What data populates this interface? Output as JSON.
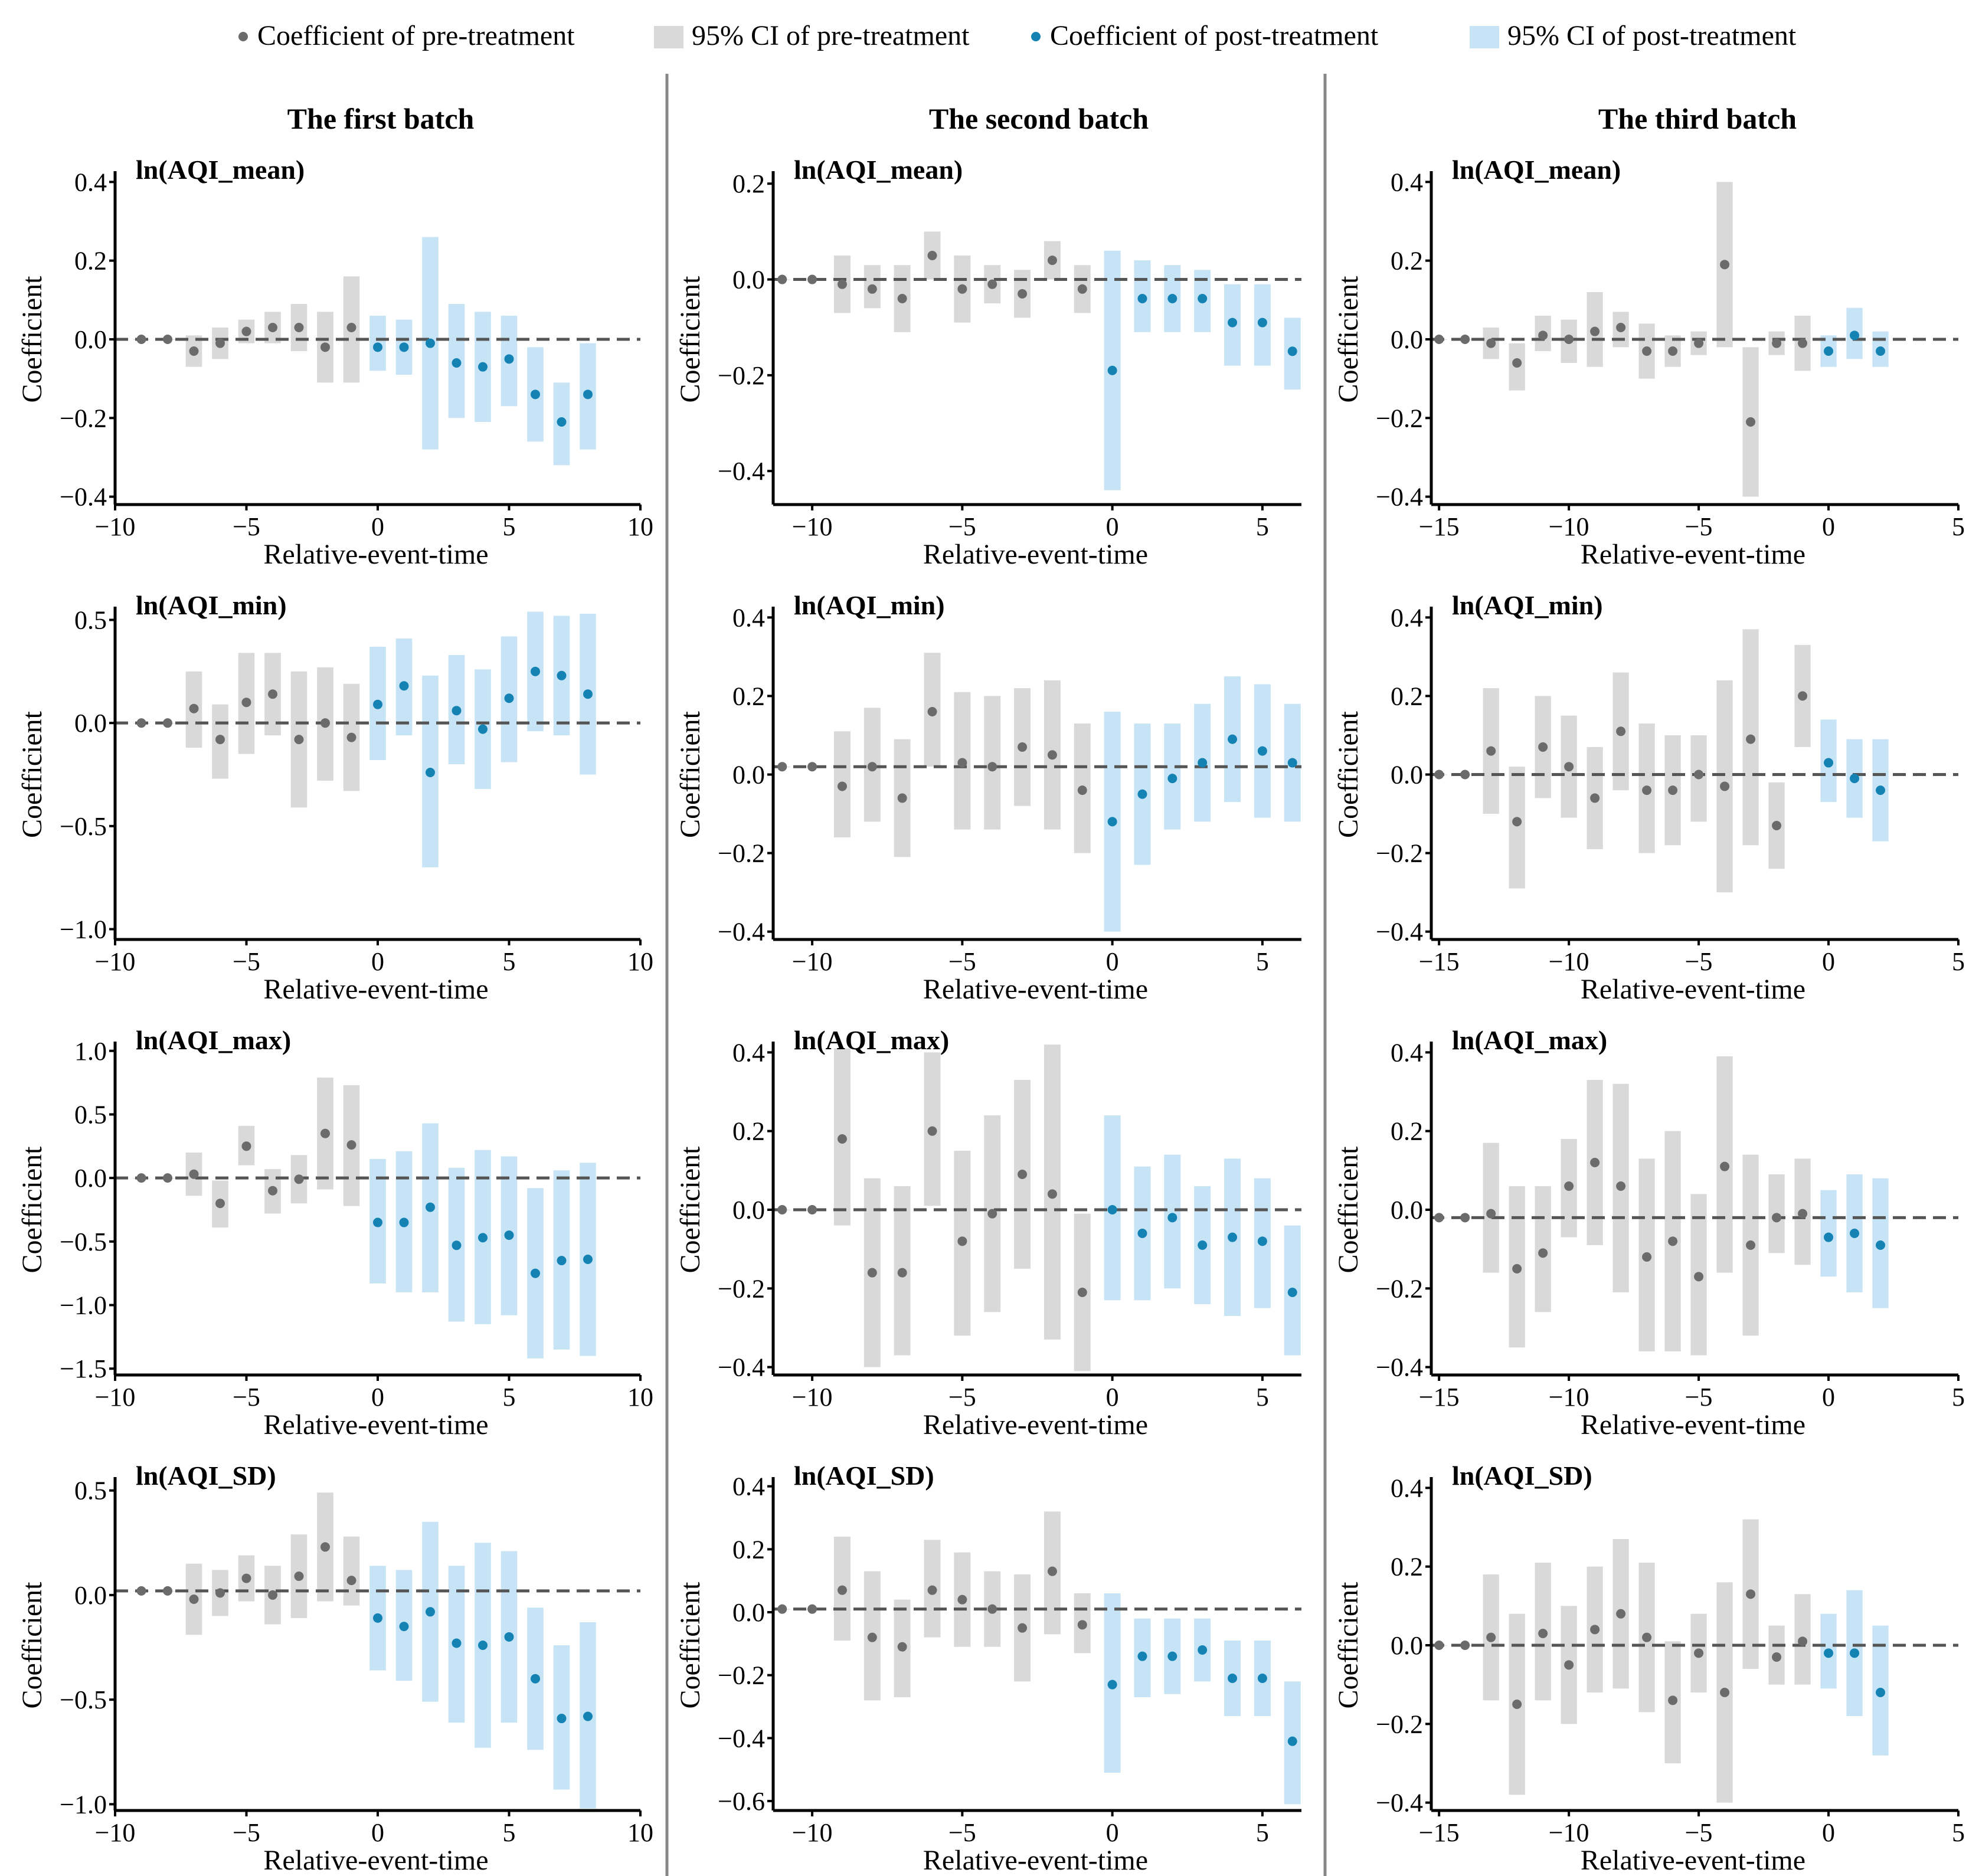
{
  "legend": {
    "pre_coef": "Coefficient of pre-treatment",
    "pre_ci": "95% CI of pre-treatment",
    "post_coef": "Coefficient of post-treatment",
    "post_ci": "95% CI of post-treatment"
  },
  "colors": {
    "pre_point": "#6b6b6b",
    "pre_ci": "#d9d9d9",
    "post_point": "#1483b4",
    "post_ci": "#c6e4f6",
    "zero_line": "#555555"
  },
  "batches": [
    "The first batch",
    "The second batch",
    "The third batch"
  ],
  "panel_titles": [
    "ln(AQI_mean)",
    "ln(AQI_min)",
    "ln(AQI_max)",
    "ln(AQI_SD)"
  ],
  "xlabel": "Relative-event-time",
  "ylabel": "Coefficient",
  "chart_data": [
    {
      "type": "scatter",
      "batch": "The first batch",
      "title": "ln(AQI_mean)",
      "xlim": [
        -10,
        10
      ],
      "xticks": [
        -10,
        -5,
        0,
        5,
        10
      ],
      "ylim": [
        -0.42,
        0.42
      ],
      "yticks": [
        -0.4,
        -0.2,
        0.0,
        0.2,
        0.4
      ],
      "yticklabels": [
        "−0.4",
        "−0.2",
        "0.0",
        "0.2",
        "0.4"
      ],
      "zero": 0,
      "x": [
        -9,
        -8,
        -7,
        -6,
        -5,
        -4,
        -3,
        -2,
        -1,
        0,
        1,
        2,
        3,
        4,
        5,
        6,
        7,
        8
      ],
      "coef": [
        0,
        0,
        -0.03,
        -0.01,
        0.02,
        0.03,
        0.03,
        -0.02,
        0.03,
        -0.02,
        -0.02,
        -0.01,
        -0.06,
        -0.07,
        -0.05,
        -0.14,
        -0.21,
        -0.14
      ],
      "lo": [
        0,
        0,
        -0.07,
        -0.05,
        -0.01,
        -0.01,
        -0.03,
        -0.11,
        -0.11,
        -0.08,
        -0.09,
        -0.28,
        -0.2,
        -0.21,
        -0.17,
        -0.26,
        -0.32,
        -0.28
      ],
      "hi": [
        0,
        0,
        0.01,
        0.03,
        0.05,
        0.07,
        0.09,
        0.07,
        0.16,
        0.06,
        0.05,
        0.26,
        0.09,
        0.07,
        0.06,
        -0.02,
        -0.11,
        -0.01
      ]
    },
    {
      "type": "scatter",
      "batch": "The second batch",
      "title": "ln(AQI_mean)",
      "xlim": [
        -11.3,
        6.3
      ],
      "xticks": [
        -10,
        -5,
        0,
        5
      ],
      "ylim": [
        -0.47,
        0.22
      ],
      "yticks": [
        -0.4,
        -0.2,
        0.0,
        0.2
      ],
      "yticklabels": [
        "−0.4",
        "−0.2",
        "0.0",
        "0.2"
      ],
      "zero": 0,
      "x": [
        -11,
        -10,
        -9,
        -8,
        -7,
        -6,
        -5,
        -4,
        -3,
        -2,
        -1,
        0,
        1,
        2,
        3,
        4,
        5,
        6
      ],
      "coef": [
        0,
        0,
        -0.01,
        -0.02,
        -0.04,
        0.05,
        -0.02,
        -0.01,
        -0.03,
        0.04,
        -0.02,
        -0.19,
        -0.04,
        -0.04,
        -0.04,
        -0.09,
        -0.09,
        -0.15
      ],
      "lo": [
        0,
        0,
        -0.07,
        -0.06,
        -0.11,
        0,
        -0.09,
        -0.05,
        -0.08,
        0,
        -0.07,
        -0.44,
        -0.11,
        -0.11,
        -0.11,
        -0.18,
        -0.18,
        -0.23
      ],
      "hi": [
        0,
        0,
        0.05,
        0.03,
        0.03,
        0.1,
        0.05,
        0.03,
        0.02,
        0.08,
        0.03,
        0.06,
        0.04,
        0.03,
        0.02,
        -0.01,
        -0.01,
        -0.08
      ]
    },
    {
      "type": "scatter",
      "batch": "The third batch",
      "title": "ln(AQI_mean)",
      "xlim": [
        -15.3,
        5
      ],
      "xticks": [
        -15,
        -10,
        -5,
        0,
        5
      ],
      "ylim": [
        -0.42,
        0.42
      ],
      "yticks": [
        -0.4,
        -0.2,
        0.0,
        0.2,
        0.4
      ],
      "yticklabels": [
        "−0.4",
        "−0.2",
        "0.0",
        "0.2",
        "0.4"
      ],
      "zero": 0,
      "x": [
        -15,
        -14,
        -13,
        -12,
        -11,
        -10,
        -9,
        -8,
        -7,
        -6,
        -5,
        -4,
        -3,
        -2,
        -1,
        0,
        1,
        2
      ],
      "coef": [
        0,
        0,
        -0.01,
        -0.06,
        0.01,
        0,
        0.02,
        0.03,
        -0.03,
        -0.03,
        -0.01,
        0.19,
        -0.21,
        -0.01,
        -0.01,
        -0.03,
        0.01,
        -0.03
      ],
      "lo": [
        0,
        0,
        -0.05,
        -0.13,
        -0.03,
        -0.06,
        -0.07,
        -0.02,
        -0.1,
        -0.07,
        -0.04,
        -0.02,
        -0.4,
        -0.04,
        -0.08,
        -0.07,
        -0.05,
        -0.07
      ],
      "hi": [
        0,
        0,
        0.03,
        -0.01,
        0.06,
        0.05,
        0.12,
        0.07,
        0.04,
        0.01,
        0.02,
        0.4,
        -0.02,
        0.02,
        0.06,
        0.01,
        0.08,
        0.02
      ]
    },
    {
      "type": "scatter",
      "batch": "The first batch",
      "title": "ln(AQI_min)",
      "xlim": [
        -10,
        10
      ],
      "xticks": [
        -10,
        -5,
        0,
        5,
        10
      ],
      "ylim": [
        -1.05,
        0.55
      ],
      "yticks": [
        -1.0,
        -0.5,
        0.0,
        0.5
      ],
      "yticklabels": [
        "−1.0",
        "−0.5",
        "0.0",
        "0.5"
      ],
      "zero": 0,
      "x": [
        -9,
        -8,
        -7,
        -6,
        -5,
        -4,
        -3,
        -2,
        -1,
        0,
        1,
        2,
        3,
        4,
        5,
        6,
        7,
        8
      ],
      "coef": [
        0,
        0,
        0.07,
        -0.08,
        0.1,
        0.14,
        -0.08,
        0,
        -0.07,
        0.09,
        0.18,
        -0.24,
        0.06,
        -0.03,
        0.12,
        0.25,
        0.23,
        0.14
      ],
      "lo": [
        0,
        0,
        -0.12,
        -0.27,
        -0.15,
        -0.06,
        -0.41,
        -0.28,
        -0.33,
        -0.18,
        -0.06,
        -0.7,
        -0.2,
        -0.32,
        -0.19,
        -0.04,
        -0.06,
        -0.25
      ],
      "hi": [
        0,
        0,
        0.25,
        0.09,
        0.34,
        0.34,
        0.25,
        0.27,
        0.19,
        0.37,
        0.41,
        0.23,
        0.33,
        0.26,
        0.42,
        0.54,
        0.52,
        0.53
      ]
    },
    {
      "type": "scatter",
      "batch": "The second batch",
      "title": "ln(AQI_min)",
      "xlim": [
        -11.3,
        6.3
      ],
      "xticks": [
        -10,
        -5,
        0,
        5
      ],
      "ylim": [
        -0.42,
        0.42
      ],
      "yticks": [
        -0.4,
        -0.2,
        0.0,
        0.2,
        0.4
      ],
      "yticklabels": [
        "−0.4",
        "−0.2",
        "0.0",
        "0.2",
        "0.4"
      ],
      "zero": 0.02,
      "x": [
        -11,
        -10,
        -9,
        -8,
        -7,
        -6,
        -5,
        -4,
        -3,
        -2,
        -1,
        0,
        1,
        2,
        3,
        4,
        5,
        6
      ],
      "coef": [
        0.02,
        0.02,
        -0.03,
        0.02,
        -0.06,
        0.16,
        0.03,
        0.02,
        0.07,
        0.05,
        -0.04,
        -0.12,
        -0.05,
        -0.01,
        0.03,
        0.09,
        0.06,
        0.03
      ],
      "lo": [
        0.02,
        0.02,
        -0.16,
        -0.12,
        -0.21,
        0.02,
        -0.14,
        -0.14,
        -0.08,
        -0.14,
        -0.2,
        -0.4,
        -0.23,
        -0.14,
        -0.12,
        -0.07,
        -0.11,
        -0.12
      ],
      "hi": [
        0.02,
        0.02,
        0.11,
        0.17,
        0.09,
        0.31,
        0.21,
        0.2,
        0.22,
        0.24,
        0.13,
        0.16,
        0.13,
        0.13,
        0.18,
        0.25,
        0.23,
        0.18
      ]
    },
    {
      "type": "scatter",
      "batch": "The third batch",
      "title": "ln(AQI_min)",
      "xlim": [
        -15.3,
        5
      ],
      "xticks": [
        -15,
        -10,
        -5,
        0,
        5
      ],
      "ylim": [
        -0.42,
        0.42
      ],
      "yticks": [
        -0.4,
        -0.2,
        0.0,
        0.2,
        0.4
      ],
      "yticklabels": [
        "−0.4",
        "−0.2",
        "0.0",
        "0.2",
        "0.4"
      ],
      "zero": 0,
      "x": [
        -15,
        -14,
        -13,
        -12,
        -11,
        -10,
        -9,
        -8,
        -7,
        -6,
        -5,
        -4,
        -3,
        -2,
        -1,
        0,
        1,
        2
      ],
      "coef": [
        0,
        0,
        0.06,
        -0.12,
        0.07,
        0.02,
        -0.06,
        0.11,
        -0.04,
        -0.04,
        0,
        -0.03,
        0.09,
        -0.13,
        0.2,
        0.03,
        -0.01,
        -0.04
      ],
      "lo": [
        0,
        0,
        -0.1,
        -0.29,
        -0.06,
        -0.11,
        -0.19,
        -0.04,
        -0.2,
        -0.18,
        -0.12,
        -0.3,
        -0.18,
        -0.24,
        0.07,
        -0.07,
        -0.11,
        -0.17
      ],
      "hi": [
        0,
        0,
        0.22,
        0.02,
        0.2,
        0.15,
        0.07,
        0.26,
        0.13,
        0.1,
        0.1,
        0.24,
        0.37,
        -0.02,
        0.33,
        0.14,
        0.09,
        0.09
      ]
    },
    {
      "type": "scatter",
      "batch": "The first batch",
      "title": "ln(AQI_max)",
      "xlim": [
        -10,
        10
      ],
      "xticks": [
        -10,
        -5,
        0,
        5,
        10
      ],
      "ylim": [
        -1.55,
        1.05
      ],
      "yticks": [
        -1.5,
        -1.0,
        -0.5,
        0.0,
        0.5,
        1.0
      ],
      "yticklabels": [
        "−1.5",
        "−1.0",
        "−0.5",
        "0.0",
        "0.5",
        "1.0"
      ],
      "zero": 0,
      "x": [
        -9,
        -8,
        -7,
        -6,
        -5,
        -4,
        -3,
        -2,
        -1,
        0,
        1,
        2,
        3,
        4,
        5,
        6,
        7,
        8
      ],
      "coef": [
        0,
        0,
        0.03,
        -0.2,
        0.25,
        -0.1,
        -0.01,
        0.35,
        0.26,
        -0.35,
        -0.35,
        -0.23,
        -0.53,
        -0.47,
        -0.45,
        -0.75,
        -0.65,
        -0.64
      ],
      "lo": [
        0,
        0,
        -0.14,
        -0.39,
        0.1,
        -0.28,
        -0.2,
        -0.09,
        -0.22,
        -0.83,
        -0.9,
        -0.9,
        -1.13,
        -1.15,
        -1.08,
        -1.42,
        -1.35,
        -1.4
      ],
      "hi": [
        0,
        0,
        0.2,
        -0.02,
        0.41,
        0.07,
        0.18,
        0.79,
        0.73,
        0.15,
        0.21,
        0.43,
        0.08,
        0.22,
        0.17,
        -0.08,
        0.06,
        0.12
      ]
    },
    {
      "type": "scatter",
      "batch": "The second batch",
      "title": "ln(AQI_max)",
      "xlim": [
        -11.3,
        6.3
      ],
      "xticks": [
        -10,
        -5,
        0,
        5
      ],
      "ylim": [
        -0.42,
        0.42
      ],
      "yticks": [
        -0.4,
        -0.2,
        0.0,
        0.2,
        0.4
      ],
      "yticklabels": [
        "−0.4",
        "−0.2",
        "0.0",
        "0.2",
        "0.4"
      ],
      "zero": 0,
      "x": [
        -11,
        -10,
        -9,
        -8,
        -7,
        -6,
        -5,
        -4,
        -3,
        -2,
        -1,
        0,
        1,
        2,
        3,
        4,
        5,
        6
      ],
      "coef": [
        0,
        0,
        0.18,
        -0.16,
        -0.16,
        0.2,
        -0.08,
        -0.01,
        0.09,
        0.04,
        -0.21,
        0,
        -0.06,
        -0.02,
        -0.09,
        -0.07,
        -0.08,
        -0.21
      ],
      "lo": [
        0,
        0,
        -0.04,
        -0.4,
        -0.37,
        0.01,
        -0.32,
        -0.26,
        -0.15,
        -0.33,
        -0.41,
        -0.23,
        -0.23,
        -0.2,
        -0.24,
        -0.27,
        -0.25,
        -0.37
      ],
      "hi": [
        0,
        0,
        0.41,
        0.08,
        0.06,
        0.4,
        0.15,
        0.24,
        0.33,
        0.42,
        -0.01,
        0.24,
        0.11,
        0.14,
        0.06,
        0.13,
        0.08,
        -0.04
      ]
    },
    {
      "type": "scatter",
      "batch": "The third batch",
      "title": "ln(AQI_max)",
      "xlim": [
        -15.3,
        5
      ],
      "xticks": [
        -15,
        -10,
        -5,
        0,
        5
      ],
      "ylim": [
        -0.42,
        0.42
      ],
      "yticks": [
        -0.4,
        -0.2,
        0.0,
        0.2,
        0.4
      ],
      "yticklabels": [
        "−0.4",
        "−0.2",
        "0.0",
        "0.2",
        "0.4"
      ],
      "zero": -0.02,
      "x": [
        -15,
        -14,
        -13,
        -12,
        -11,
        -10,
        -9,
        -8,
        -7,
        -6,
        -5,
        -4,
        -3,
        -2,
        -1,
        0,
        1,
        2
      ],
      "coef": [
        -0.02,
        -0.02,
        -0.01,
        -0.15,
        -0.11,
        0.06,
        0.12,
        0.06,
        -0.12,
        -0.08,
        -0.17,
        0.11,
        -0.09,
        -0.02,
        -0.01,
        -0.07,
        -0.06,
        -0.09
      ],
      "lo": [
        -0.02,
        -0.02,
        -0.16,
        -0.35,
        -0.26,
        -0.07,
        -0.09,
        -0.21,
        -0.36,
        -0.36,
        -0.37,
        -0.16,
        -0.32,
        -0.11,
        -0.14,
        -0.17,
        -0.21,
        -0.25
      ],
      "hi": [
        -0.02,
        -0.02,
        0.17,
        0.06,
        0.06,
        0.18,
        0.33,
        0.32,
        0.13,
        0.2,
        0.04,
        0.39,
        0.14,
        0.09,
        0.13,
        0.05,
        0.09,
        0.08
      ]
    },
    {
      "type": "scatter",
      "batch": "The first batch",
      "title": "ln(AQI_SD)",
      "xlim": [
        -10,
        10
      ],
      "xticks": [
        -10,
        -5,
        0,
        5,
        10
      ],
      "ylim": [
        -1.03,
        0.55
      ],
      "yticks": [
        -1.0,
        -0.5,
        0.0,
        0.5
      ],
      "yticklabels": [
        "−1.0",
        "−0.5",
        "0.0",
        "0.5"
      ],
      "zero": 0.02,
      "x": [
        -9,
        -8,
        -7,
        -6,
        -5,
        -4,
        -3,
        -2,
        -1,
        0,
        1,
        2,
        3,
        4,
        5,
        6,
        7,
        8
      ],
      "coef": [
        0.02,
        0.02,
        -0.02,
        0.01,
        0.08,
        0,
        0.09,
        0.23,
        0.07,
        -0.11,
        -0.15,
        -0.08,
        -0.23,
        -0.24,
        -0.2,
        -0.4,
        -0.59,
        -0.58
      ],
      "lo": [
        0.02,
        0.02,
        -0.19,
        -0.1,
        -0.03,
        -0.14,
        -0.11,
        -0.03,
        -0.05,
        -0.36,
        -0.41,
        -0.51,
        -0.61,
        -0.73,
        -0.61,
        -0.74,
        -0.93,
        -1.02
      ],
      "hi": [
        0.02,
        0.02,
        0.15,
        0.12,
        0.19,
        0.14,
        0.29,
        0.49,
        0.28,
        0.14,
        0.12,
        0.35,
        0.14,
        0.25,
        0.21,
        -0.06,
        -0.24,
        -0.13
      ]
    },
    {
      "type": "scatter",
      "batch": "The second batch",
      "title": "ln(AQI_SD)",
      "xlim": [
        -11.3,
        6.3
      ],
      "xticks": [
        -10,
        -5,
        0,
        5
      ],
      "ylim": [
        -0.63,
        0.42
      ],
      "yticks": [
        -0.6,
        -0.4,
        -0.2,
        0.0,
        0.2,
        0.4
      ],
      "yticklabels": [
        "−0.6",
        "−0.4",
        "−0.2",
        "0.0",
        "0.2",
        "0.4"
      ],
      "zero": 0.01,
      "x": [
        -11,
        -10,
        -9,
        -8,
        -7,
        -6,
        -5,
        -4,
        -3,
        -2,
        -1,
        0,
        1,
        2,
        3,
        4,
        5,
        6
      ],
      "coef": [
        0.01,
        0.01,
        0.07,
        -0.08,
        -0.11,
        0.07,
        0.04,
        0.01,
        -0.05,
        0.13,
        -0.04,
        -0.23,
        -0.14,
        -0.14,
        -0.12,
        -0.21,
        -0.21,
        -0.41
      ],
      "lo": [
        0.01,
        0.01,
        -0.09,
        -0.28,
        -0.27,
        -0.08,
        -0.11,
        -0.11,
        -0.22,
        -0.07,
        -0.13,
        -0.51,
        -0.27,
        -0.26,
        -0.22,
        -0.33,
        -0.33,
        -0.61
      ],
      "hi": [
        0.01,
        0.01,
        0.24,
        0.13,
        0.04,
        0.23,
        0.19,
        0.13,
        0.12,
        0.32,
        0.06,
        0.06,
        -0.02,
        -0.02,
        -0.02,
        -0.09,
        -0.09,
        -0.22
      ]
    },
    {
      "type": "scatter",
      "batch": "The third batch",
      "title": "ln(AQI_SD)",
      "xlim": [
        -15.3,
        5
      ],
      "xticks": [
        -15,
        -10,
        -5,
        0,
        5
      ],
      "ylim": [
        -0.42,
        0.42
      ],
      "yticks": [
        -0.4,
        -0.2,
        0.0,
        0.2,
        0.4
      ],
      "yticklabels": [
        "−0.4",
        "−0.2",
        "0.0",
        "0.2",
        "0.4"
      ],
      "zero": 0,
      "x": [
        -15,
        -14,
        -13,
        -12,
        -11,
        -10,
        -9,
        -8,
        -7,
        -6,
        -5,
        -4,
        -3,
        -2,
        -1,
        0,
        1,
        2
      ],
      "coef": [
        0,
        0,
        0.02,
        -0.15,
        0.03,
        -0.05,
        0.04,
        0.08,
        0.02,
        -0.14,
        -0.02,
        -0.12,
        0.13,
        -0.03,
        0.01,
        -0.02,
        -0.02,
        -0.12
      ],
      "lo": [
        0,
        0,
        -0.14,
        -0.38,
        -0.14,
        -0.2,
        -0.12,
        -0.11,
        -0.17,
        -0.3,
        -0.12,
        -0.4,
        -0.06,
        -0.1,
        -0.1,
        -0.11,
        -0.18,
        -0.28
      ],
      "hi": [
        0,
        0,
        0.18,
        0.08,
        0.21,
        0.1,
        0.2,
        0.27,
        0.21,
        0.01,
        0.08,
        0.16,
        0.32,
        0.05,
        0.13,
        0.08,
        0.14,
        0.05
      ]
    }
  ]
}
